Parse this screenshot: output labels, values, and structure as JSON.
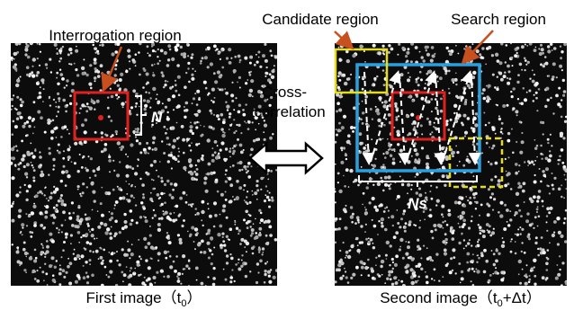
{
  "labels": {
    "interrogation_region": "Interrogation region",
    "n": "N",
    "cross_correlation": [
      "Cross-",
      "correlation"
    ],
    "candidate_region": "Candidate region",
    "search_region": "Search region",
    "ns": "Ns"
  },
  "captions": {
    "first": {
      "text": "First image（t",
      "sub": "0",
      "end": "）"
    },
    "second": {
      "text": "Second image（t",
      "sub": "0",
      "end": "+Δt）"
    }
  }
}
